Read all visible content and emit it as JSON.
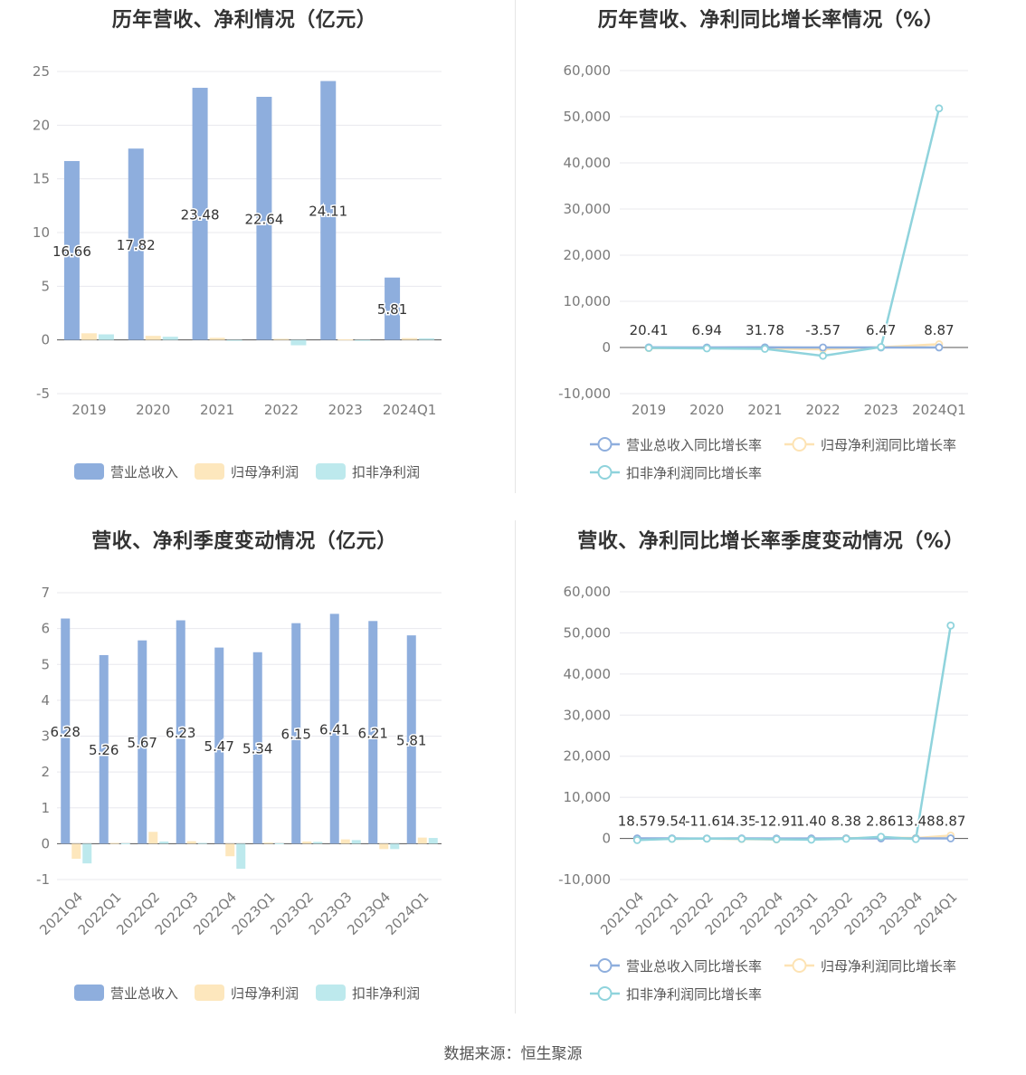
{
  "source": "数据来源：恒生聚源",
  "colors": {
    "revenue": "#8eaedd",
    "net_profit": "#fde7bd",
    "deducted_profit": "#bde9ed",
    "revenue_line": "#8eaedd",
    "net_line": "#fde3b4",
    "deducted_line": "#8fd3dc",
    "grid": "#e8e8ee",
    "axis_text": "#7a7a7a"
  },
  "chart_data": [
    {
      "type": "bar",
      "title": "历年营收、净利情况（亿元）",
      "categories": [
        "2019",
        "2020",
        "2021",
        "2022",
        "2023",
        "2024Q1"
      ],
      "ylim": [
        -5,
        25
      ],
      "yticks": [
        -5,
        0,
        5,
        10,
        15,
        20,
        25
      ],
      "grid": true,
      "legend": "bottom",
      "series": [
        {
          "name": "营业总收入",
          "values": [
            16.66,
            17.82,
            23.48,
            22.64,
            24.11,
            5.81
          ]
        },
        {
          "name": "归母净利润",
          "values": [
            0.62,
            0.38,
            0.2,
            0.1,
            0.05,
            0.17
          ]
        },
        {
          "name": "扣非净利润",
          "values": [
            0.52,
            0.3,
            -0.05,
            -0.5,
            -0.05,
            0.15
          ]
        }
      ],
      "data_labels": [
        "16.66",
        "17.82",
        "23.48",
        "22.64",
        "24.11",
        "5.81"
      ]
    },
    {
      "type": "line",
      "title": "历年营收、净利同比增长率情况（%）",
      "categories": [
        "2019",
        "2020",
        "2021",
        "2022",
        "2023",
        "2024Q1"
      ],
      "ylim": [
        -10000,
        60000
      ],
      "yticks": [
        -10000,
        0,
        10000,
        20000,
        30000,
        40000,
        50000,
        60000
      ],
      "ytick_labels": [
        "-10,000",
        "0",
        "10,000",
        "20,000",
        "30,000",
        "40,000",
        "50,000",
        "60,000"
      ],
      "grid": true,
      "legend": "bottom",
      "series": [
        {
          "name": "营业总收入同比增长率",
          "values": [
            20.41,
            6.94,
            31.78,
            -3.57,
            6.47,
            8.87
          ]
        },
        {
          "name": "归母净利润同比增长率",
          "values": [
            -150,
            -100,
            -200,
            -400,
            50,
            700
          ]
        },
        {
          "name": "扣非净利润同比增长率",
          "values": [
            -100,
            -200,
            -300,
            -1800,
            100,
            51800
          ]
        }
      ],
      "data_labels": [
        "20.41",
        "6.94",
        "31.78",
        "-3.57",
        "6.47",
        "8.87"
      ]
    },
    {
      "type": "bar",
      "title": "营收、净利季度变动情况（亿元）",
      "categories": [
        "2021Q4",
        "2022Q1",
        "2022Q2",
        "2022Q3",
        "2022Q4",
        "2023Q1",
        "2023Q2",
        "2023Q3",
        "2023Q4",
        "2024Q1"
      ],
      "ylim": [
        -1,
        7
      ],
      "yticks": [
        -1,
        0,
        1,
        2,
        3,
        4,
        5,
        6,
        7
      ],
      "grid": true,
      "legend": "bottom",
      "series": [
        {
          "name": "营业总收入",
          "values": [
            6.28,
            5.26,
            5.67,
            6.23,
            5.47,
            5.34,
            6.15,
            6.41,
            6.21,
            5.81
          ]
        },
        {
          "name": "归母净利润",
          "values": [
            -0.42,
            0.02,
            0.33,
            0.07,
            -0.35,
            0.03,
            0.06,
            0.12,
            -0.15,
            0.17
          ]
        },
        {
          "name": "扣非净利润",
          "values": [
            -0.55,
            0.01,
            0.06,
            0.02,
            -0.7,
            0.01,
            0.05,
            0.1,
            -0.15,
            0.16
          ]
        }
      ],
      "data_labels": [
        "6.28",
        "5.26",
        "5.67",
        "6.23",
        "5.47",
        "5.34",
        "6.15",
        "6.41",
        "6.21",
        "5.81"
      ]
    },
    {
      "type": "line",
      "title": "营收、净利同比增长率季度变动情况（%）",
      "categories": [
        "2021Q4",
        "2022Q1",
        "2022Q2",
        "2022Q3",
        "2022Q4",
        "2023Q1",
        "2023Q2",
        "2023Q3",
        "2023Q4",
        "2024Q1"
      ],
      "ylim": [
        -10000,
        60000
      ],
      "yticks": [
        -10000,
        0,
        10000,
        20000,
        30000,
        40000,
        50000,
        60000
      ],
      "ytick_labels": [
        "-10,000",
        "0",
        "10,000",
        "20,000",
        "30,000",
        "40,000",
        "50,000",
        "60,000"
      ],
      "grid": true,
      "legend": "bottom",
      "series": [
        {
          "name": "营业总收入同比增长率",
          "values": [
            18.57,
            9.54,
            -11.61,
            4.35,
            -12.91,
            1.4,
            8.38,
            2.86,
            13.48,
            8.87
          ]
        },
        {
          "name": "归母净利润同比增长率",
          "values": [
            -300,
            -100,
            -50,
            -150,
            -250,
            -100,
            50,
            200,
            100,
            700
          ]
        },
        {
          "name": "扣非净利润同比增长率",
          "values": [
            -400,
            -100,
            -50,
            -100,
            -200,
            -300,
            -100,
            400,
            -150,
            51800
          ]
        }
      ],
      "data_labels": [
        "18.57",
        "9.54",
        "-11.61",
        "4.35",
        "-12.91",
        "1.40",
        "8.38",
        "2.86",
        "13.48",
        "8.87"
      ]
    }
  ]
}
